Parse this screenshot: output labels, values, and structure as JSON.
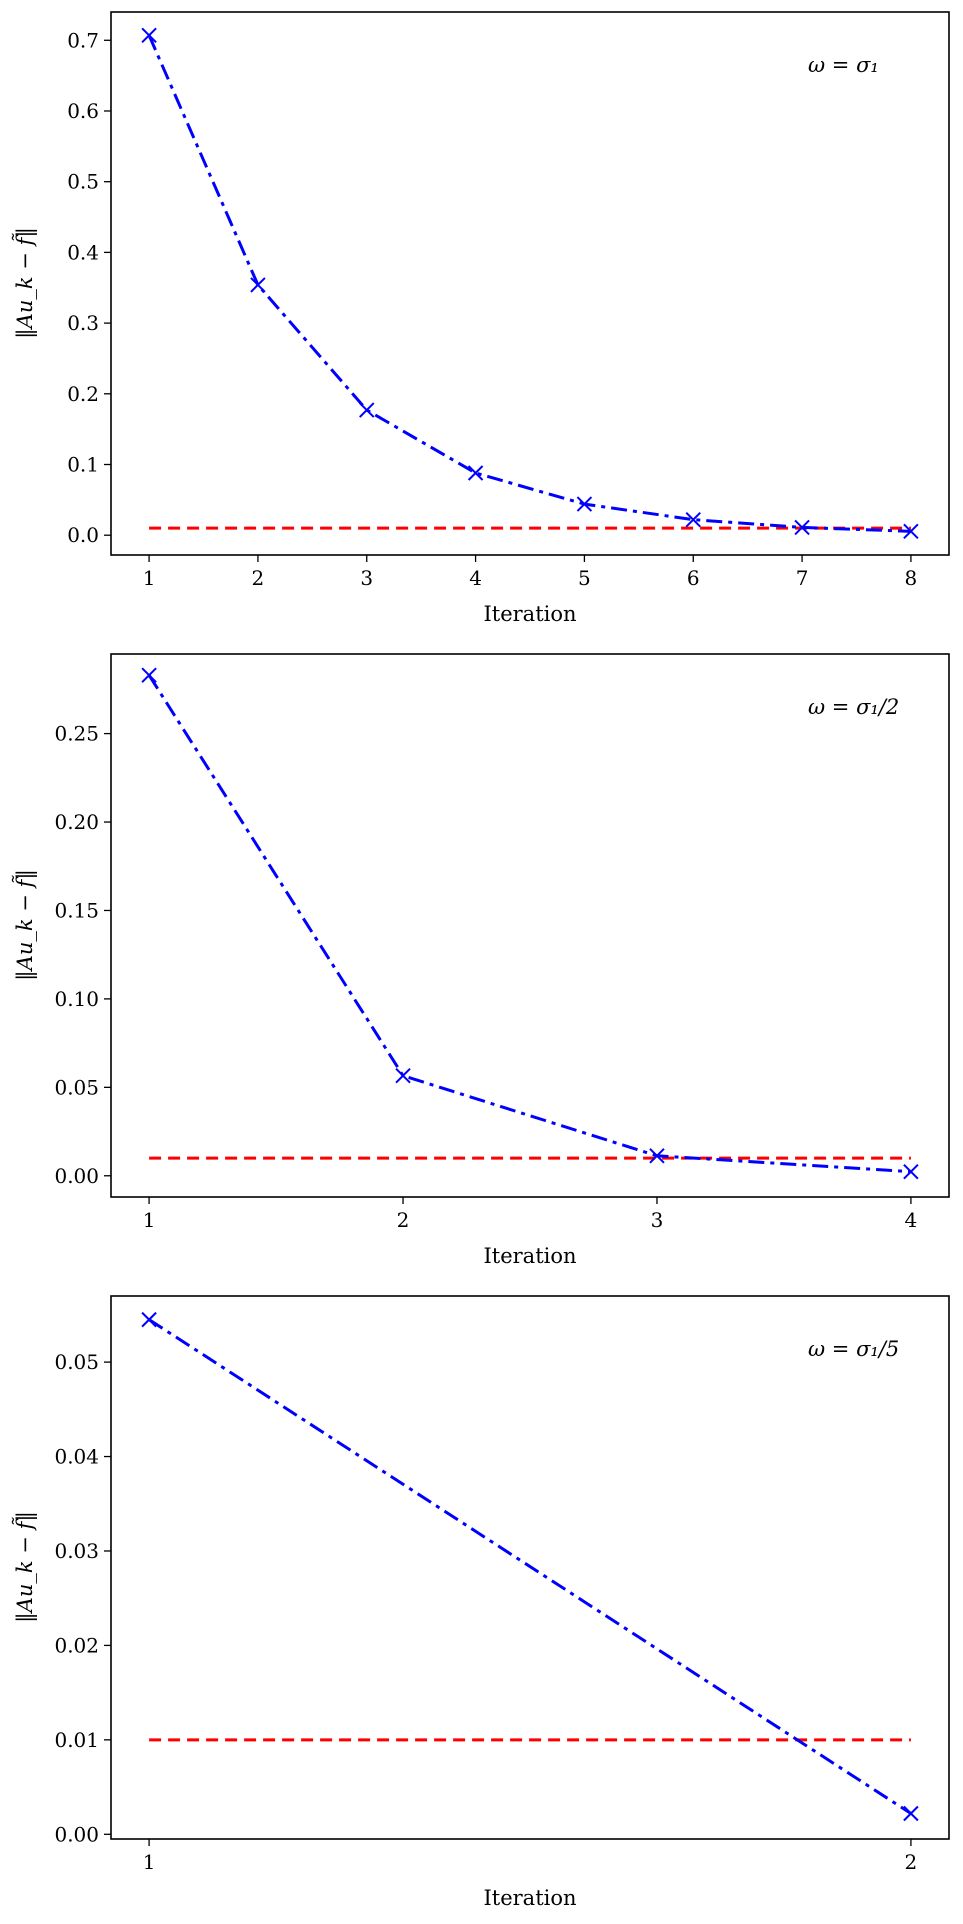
{
  "chart_data": [
    {
      "type": "line",
      "legend_text": "ω = σ₁",
      "legend_placement": "top-right",
      "xlabel": "Iteration",
      "ylabel": "‖Au_k − f̃‖",
      "x": [
        1,
        2,
        3,
        4,
        5,
        6,
        7,
        8
      ],
      "xlim": [
        0.65,
        8.35
      ],
      "ylim": [
        -0.028,
        0.74
      ],
      "xticks": [
        1,
        2,
        3,
        4,
        5,
        6,
        7,
        8
      ],
      "xtick_labels": [
        "1",
        "2",
        "3",
        "4",
        "5",
        "6",
        "7",
        "8"
      ],
      "yticks": [
        0.0,
        0.1,
        0.2,
        0.3,
        0.4,
        0.5,
        0.6,
        0.7
      ],
      "ytick_labels": [
        "0.0",
        "0.1",
        "0.2",
        "0.3",
        "0.4",
        "0.5",
        "0.6",
        "0.7"
      ],
      "series": [
        {
          "values": [
            0.707,
            0.354,
            0.177,
            0.088,
            0.044,
            0.022,
            0.011,
            0.0055
          ],
          "color": "#0000ff",
          "line_style": "dash-dot",
          "marker": "x"
        },
        {
          "values": [
            0.01,
            0.01,
            0.01,
            0.01,
            0.01,
            0.01,
            0.01,
            0.01
          ],
          "color": "#ff0000",
          "line_style": "dashed",
          "marker": "none"
        }
      ],
      "grid": false
    },
    {
      "type": "line",
      "legend_text": "ω = σ₁/2",
      "legend_placement": "top-right",
      "xlabel": "Iteration",
      "ylabel": "‖Au_k − f̃‖",
      "x": [
        1,
        2,
        3,
        4
      ],
      "xlim": [
        0.85,
        4.15
      ],
      "ylim": [
        -0.012,
        0.295
      ],
      "xticks": [
        1,
        2,
        3,
        4
      ],
      "xtick_labels": [
        "1",
        "2",
        "3",
        "4"
      ],
      "yticks": [
        0.0,
        0.05,
        0.1,
        0.15,
        0.2,
        0.25
      ],
      "ytick_labels": [
        "0.00",
        "0.05",
        "0.10",
        "0.15",
        "0.20",
        "0.25"
      ],
      "series": [
        {
          "values": [
            0.283,
            0.0566,
            0.0113,
            0.0023
          ],
          "color": "#0000ff",
          "line_style": "dash-dot",
          "marker": "x"
        },
        {
          "values": [
            0.01,
            0.01,
            0.01,
            0.01
          ],
          "color": "#ff0000",
          "line_style": "dashed",
          "marker": "none"
        }
      ],
      "grid": false
    },
    {
      "type": "line",
      "legend_text": "ω = σ₁/5",
      "legend_placement": "top-right",
      "xlabel": "Iteration",
      "ylabel": "‖Au_k − f̃‖",
      "x": [
        1,
        2
      ],
      "xlim": [
        0.95,
        2.05
      ],
      "ylim": [
        -0.0005,
        0.057
      ],
      "xticks": [
        1,
        2
      ],
      "xtick_labels": [
        "1",
        "2"
      ],
      "yticks": [
        0.0,
        0.01,
        0.02,
        0.03,
        0.04,
        0.05
      ],
      "ytick_labels": [
        "0.00",
        "0.01",
        "0.02",
        "0.03",
        "0.04",
        "0.05"
      ],
      "series": [
        {
          "values": [
            0.0545,
            0.0022
          ],
          "color": "#0000ff",
          "line_style": "dash-dot",
          "marker": "x"
        },
        {
          "values": [
            0.01,
            0.01
          ],
          "color": "#ff0000",
          "line_style": "dashed",
          "marker": "none"
        }
      ],
      "grid": false
    }
  ]
}
